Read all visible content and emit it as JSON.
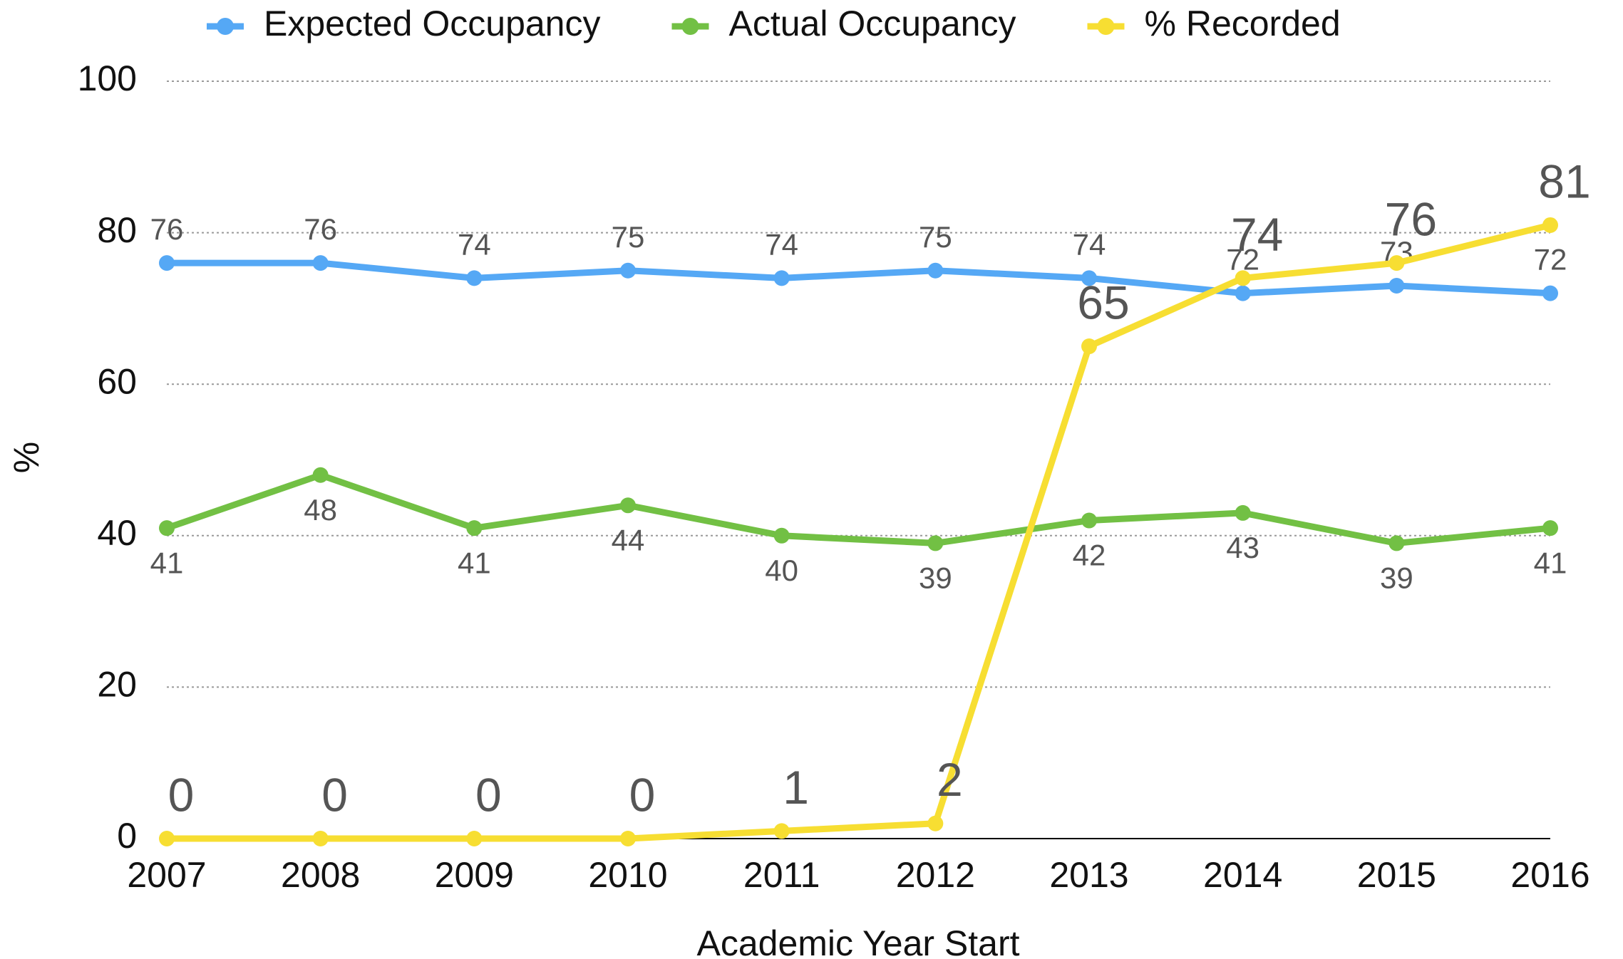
{
  "chart_data": {
    "type": "line",
    "categories": [
      "2007",
      "2008",
      "2009",
      "2010",
      "2011",
      "2012",
      "2013",
      "2014",
      "2015",
      "2016"
    ],
    "series": [
      {
        "name": "Expected Occupancy",
        "color": "#55a8f5",
        "values": [
          76,
          76,
          74,
          75,
          74,
          75,
          74,
          72,
          73,
          72
        ]
      },
      {
        "name": "Actual Occupancy",
        "color": "#72c044",
        "values": [
          41,
          48,
          41,
          44,
          40,
          39,
          42,
          43,
          39,
          41
        ]
      },
      {
        "name": "% Recorded",
        "color": "#f7de32",
        "values": [
          0,
          0,
          0,
          0,
          1,
          2,
          65,
          74,
          76,
          81
        ]
      }
    ],
    "x_label": "Academic Year Start",
    "y_label": "%",
    "ylim": [
      0,
      100
    ],
    "yticks": [
      0,
      20,
      40,
      60,
      80,
      100
    ],
    "grid": true,
    "legend": "top"
  }
}
